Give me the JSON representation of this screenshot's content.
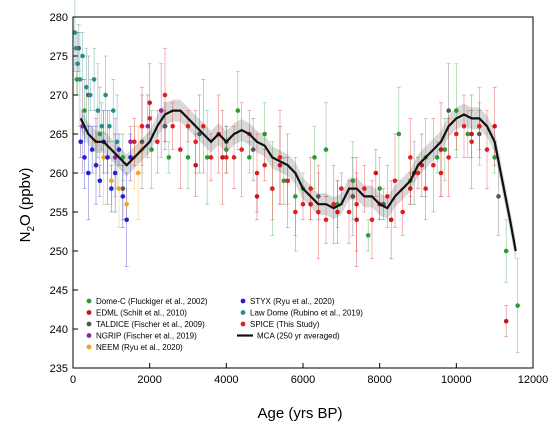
{
  "chart_data": {
    "type": "scatter",
    "xlabel": "Age (yrs BP)",
    "ylabel_main": "N",
    "ylabel_sub": "2",
    "ylabel_rest": "O (ppbv)",
    "xlim": [
      0,
      12000
    ],
    "ylim": [
      235,
      280
    ],
    "xticks": [
      0,
      2000,
      4000,
      6000,
      8000,
      10000,
      12000
    ],
    "yticks": [
      235,
      240,
      245,
      250,
      255,
      260,
      265,
      270,
      275,
      280
    ],
    "grid": false,
    "legend_position": "bottom-left",
    "series": [
      {
        "name": "Dome-C (Fluckiger et al., 2002)",
        "color": "#2e9a36",
        "marker": "circle",
        "points": [
          [
            100,
            272
          ],
          [
            300,
            268
          ],
          [
            700,
            265
          ],
          [
            1300,
            262
          ],
          [
            2050,
            263
          ],
          [
            2500,
            262
          ],
          [
            3000,
            262
          ],
          [
            3500,
            262
          ],
          [
            4000,
            263
          ],
          [
            4300,
            268
          ],
          [
            4600,
            262
          ],
          [
            5000,
            265
          ],
          [
            5200,
            258
          ],
          [
            5500,
            259
          ],
          [
            5800,
            257
          ],
          [
            6000,
            258
          ],
          [
            6300,
            262
          ],
          [
            6600,
            263
          ],
          [
            6900,
            256
          ],
          [
            7300,
            259
          ],
          [
            7700,
            252
          ],
          [
            8000,
            258
          ],
          [
            8500,
            265
          ],
          [
            8800,
            259
          ],
          [
            9200,
            262
          ],
          [
            9500,
            262
          ],
          [
            9700,
            263
          ],
          [
            10000,
            268
          ],
          [
            10300,
            265
          ],
          [
            10600,
            266
          ],
          [
            11000,
            262
          ],
          [
            11300,
            250
          ],
          [
            11600,
            243
          ]
        ]
      },
      {
        "name": "EDML (Schilt et al., 2010)",
        "color": "#c21818",
        "marker": "circle",
        "points": [
          [
            2000,
            269
          ],
          [
            2400,
            266
          ],
          [
            3200,
            261
          ],
          [
            3900,
            262
          ],
          [
            4800,
            257
          ],
          [
            5400,
            261
          ],
          [
            6200,
            256
          ],
          [
            6900,
            255
          ],
          [
            7400,
            254
          ],
          [
            7900,
            260
          ],
          [
            8300,
            254
          ],
          [
            8800,
            258
          ],
          [
            9100,
            261
          ],
          [
            9600,
            263
          ],
          [
            10400,
            265
          ],
          [
            11000,
            266
          ],
          [
            11300,
            241
          ]
        ]
      },
      {
        "name": "TALDICE (Fischer et al., 2009)",
        "color": "#555555",
        "marker": "circle",
        "points": [
          [
            150,
            276
          ],
          [
            400,
            270
          ],
          [
            900,
            262
          ],
          [
            1300,
            258
          ],
          [
            1800,
            264
          ],
          [
            2400,
            266
          ],
          [
            3300,
            265
          ],
          [
            4000,
            264
          ],
          [
            4700,
            263
          ],
          [
            5600,
            259
          ],
          [
            6400,
            257
          ],
          [
            7300,
            257
          ],
          [
            8100,
            256
          ],
          [
            8900,
            260
          ],
          [
            9800,
            268
          ],
          [
            10600,
            265
          ],
          [
            11100,
            257
          ]
        ]
      },
      {
        "name": "NGRIP (Fischer et al., 2019)",
        "color": "#8a2a9c",
        "marker": "circle",
        "points": [
          [
            250,
            266
          ],
          [
            600,
            264
          ],
          [
            1100,
            262
          ],
          [
            1500,
            264
          ],
          [
            1950,
            266
          ],
          [
            2300,
            268
          ]
        ]
      },
      {
        "name": "NEEM (Ryu et al., 2020)",
        "color": "#f0a030",
        "marker": "circle",
        "points": [
          [
            600,
            264
          ],
          [
            800,
            262
          ],
          [
            1000,
            259
          ],
          [
            1200,
            258
          ],
          [
            1400,
            256
          ],
          [
            1600,
            262
          ],
          [
            1700,
            260
          ],
          [
            1800,
            263
          ]
        ]
      },
      {
        "name": "STYX (Ryu et al., 2020)",
        "color": "#2222cc",
        "marker": "circle",
        "points": [
          [
            200,
            264
          ],
          [
            300,
            262
          ],
          [
            400,
            260
          ],
          [
            500,
            263
          ],
          [
            600,
            261
          ],
          [
            700,
            259
          ],
          [
            800,
            264
          ],
          [
            900,
            262
          ],
          [
            1000,
            258
          ],
          [
            1100,
            260
          ],
          [
            1200,
            263
          ],
          [
            1300,
            257
          ],
          [
            1400,
            254
          ],
          [
            1500,
            262
          ]
        ]
      },
      {
        "name": "Law Dome (Rubino et al., 2019)",
        "color": "#2a8c8c",
        "marker": "circle",
        "points": [
          [
            50,
            278
          ],
          [
            80,
            276
          ],
          [
            120,
            274
          ],
          [
            180,
            272
          ],
          [
            250,
            275
          ],
          [
            350,
            271
          ],
          [
            450,
            270
          ],
          [
            550,
            272
          ],
          [
            650,
            268
          ],
          [
            750,
            266
          ],
          [
            850,
            270
          ],
          [
            950,
            266
          ],
          [
            1050,
            268
          ],
          [
            1150,
            264
          ]
        ]
      },
      {
        "name": "SPICE (This Study)",
        "color": "#e02020",
        "marker": "circle",
        "points": [
          [
            1600,
            264
          ],
          [
            1800,
            266
          ],
          [
            2000,
            267
          ],
          [
            2200,
            264
          ],
          [
            2400,
            270
          ],
          [
            2600,
            266
          ],
          [
            2800,
            263
          ],
          [
            3000,
            266
          ],
          [
            3200,
            264
          ],
          [
            3400,
            266
          ],
          [
            3600,
            262
          ],
          [
            3800,
            265
          ],
          [
            4000,
            262
          ],
          [
            4200,
            262
          ],
          [
            4400,
            263
          ],
          [
            4600,
            265
          ],
          [
            4800,
            260
          ],
          [
            5000,
            261
          ],
          [
            5200,
            258
          ],
          [
            5400,
            262
          ],
          [
            5600,
            259
          ],
          [
            5800,
            255
          ],
          [
            6000,
            256
          ],
          [
            6200,
            258
          ],
          [
            6400,
            255
          ],
          [
            6600,
            254
          ],
          [
            6800,
            256
          ],
          [
            7000,
            258
          ],
          [
            7200,
            255
          ],
          [
            7400,
            256
          ],
          [
            7600,
            258
          ],
          [
            7800,
            254
          ],
          [
            8000,
            256
          ],
          [
            8200,
            257
          ],
          [
            8400,
            259
          ],
          [
            8600,
            255
          ],
          [
            8800,
            262
          ],
          [
            9000,
            260
          ],
          [
            9200,
            258
          ],
          [
            9400,
            261
          ],
          [
            9600,
            260
          ],
          [
            9800,
            262
          ],
          [
            10000,
            265
          ],
          [
            10200,
            266
          ],
          [
            10400,
            264
          ],
          [
            10600,
            266
          ],
          [
            10800,
            263
          ]
        ]
      },
      {
        "name": "MCA (250 yr averaged)",
        "color": "#111111",
        "marker": "line",
        "points": [
          [
            200,
            267
          ],
          [
            400,
            265
          ],
          [
            600,
            264
          ],
          [
            800,
            264
          ],
          [
            1000,
            263
          ],
          [
            1200,
            262
          ],
          [
            1400,
            261
          ],
          [
            1600,
            262
          ],
          [
            1800,
            263
          ],
          [
            2000,
            264
          ],
          [
            2200,
            266
          ],
          [
            2400,
            267.5
          ],
          [
            2600,
            268
          ],
          [
            2800,
            268
          ],
          [
            3000,
            267
          ],
          [
            3200,
            266
          ],
          [
            3400,
            265
          ],
          [
            3600,
            264
          ],
          [
            3800,
            265
          ],
          [
            4000,
            264
          ],
          [
            4200,
            265
          ],
          [
            4400,
            265.5
          ],
          [
            4600,
            265
          ],
          [
            4800,
            264
          ],
          [
            5000,
            263.5
          ],
          [
            5200,
            262
          ],
          [
            5400,
            261.5
          ],
          [
            5600,
            261
          ],
          [
            5800,
            260
          ],
          [
            6000,
            258
          ],
          [
            6200,
            257
          ],
          [
            6400,
            256
          ],
          [
            6600,
            256
          ],
          [
            6800,
            255.5
          ],
          [
            7000,
            256
          ],
          [
            7200,
            258
          ],
          [
            7400,
            258
          ],
          [
            7600,
            257
          ],
          [
            7800,
            257
          ],
          [
            8000,
            256
          ],
          [
            8200,
            255.5
          ],
          [
            8400,
            257
          ],
          [
            8600,
            258
          ],
          [
            8800,
            259
          ],
          [
            9000,
            261
          ],
          [
            9200,
            262
          ],
          [
            9400,
            263
          ],
          [
            9600,
            264
          ],
          [
            9800,
            266
          ],
          [
            10000,
            267
          ],
          [
            10200,
            267.5
          ],
          [
            10400,
            267
          ],
          [
            10600,
            267
          ],
          [
            10800,
            266
          ],
          [
            11000,
            264
          ],
          [
            11200,
            259
          ],
          [
            11400,
            254
          ],
          [
            11550,
            250
          ]
        ]
      }
    ]
  }
}
